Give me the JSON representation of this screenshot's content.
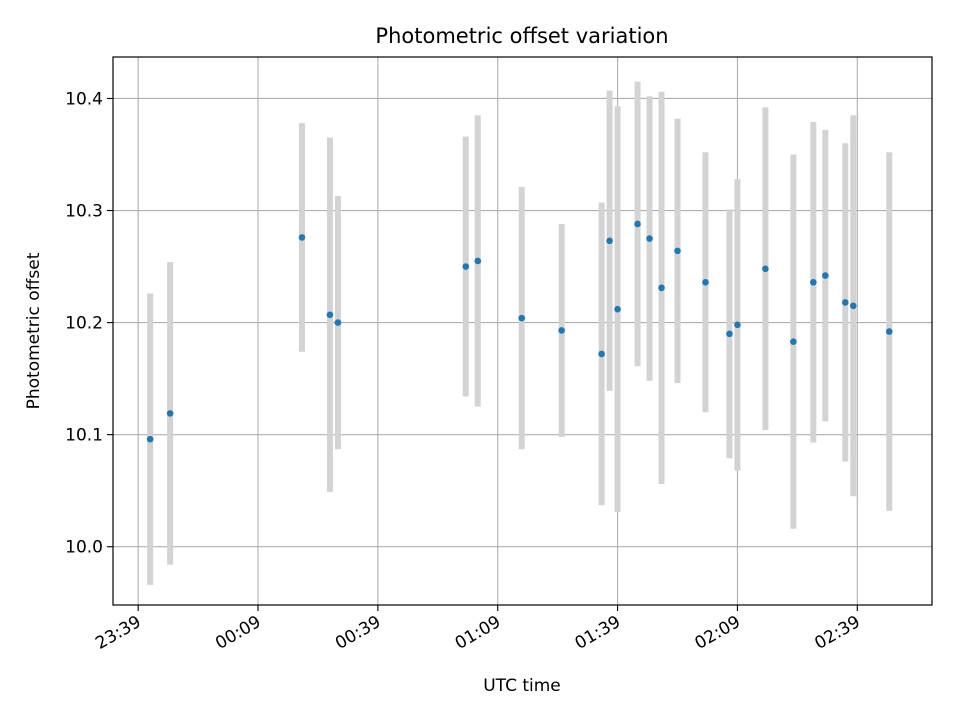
{
  "chart_data": {
    "type": "scatter",
    "title": "Photometric offset variation",
    "xlabel": "UTC time",
    "ylabel": "Photometric offset",
    "x_ticks": [
      "23:39",
      "00:09",
      "00:39",
      "01:09",
      "01:39",
      "02:09",
      "02:39"
    ],
    "y_ticks": [
      "10.0",
      "10.1",
      "10.2",
      "10.3",
      "10.4"
    ],
    "x_unit": "minutes after 23:39 UTC",
    "xlim": [
      -6.3,
      198.7
    ],
    "ylim": [
      9.948,
      10.437
    ],
    "grid": true,
    "points": [
      {
        "x": 3,
        "y": 10.096,
        "err": 0.13
      },
      {
        "x": 8,
        "y": 10.119,
        "err": 0.135
      },
      {
        "x": 41,
        "y": 10.276,
        "err": 0.102
      },
      {
        "x": 48,
        "y": 10.207,
        "err": 0.158
      },
      {
        "x": 50,
        "y": 10.2,
        "err": 0.113
      },
      {
        "x": 82,
        "y": 10.25,
        "err": 0.116
      },
      {
        "x": 85,
        "y": 10.255,
        "err": 0.13
      },
      {
        "x": 96,
        "y": 10.204,
        "err": 0.117
      },
      {
        "x": 106,
        "y": 10.193,
        "err": 0.095
      },
      {
        "x": 116,
        "y": 10.172,
        "err": 0.135
      },
      {
        "x": 118,
        "y": 10.273,
        "err": 0.134
      },
      {
        "x": 120,
        "y": 10.212,
        "err": 0.181
      },
      {
        "x": 125,
        "y": 10.288,
        "err": 0.127
      },
      {
        "x": 128,
        "y": 10.275,
        "err": 0.127
      },
      {
        "x": 131,
        "y": 10.231,
        "err": 0.175
      },
      {
        "x": 135,
        "y": 10.264,
        "err": 0.118
      },
      {
        "x": 142,
        "y": 10.236,
        "err": 0.116
      },
      {
        "x": 148,
        "y": 10.19,
        "err": 0.111
      },
      {
        "x": 150,
        "y": 10.198,
        "err": 0.13
      },
      {
        "x": 157,
        "y": 10.248,
        "err": 0.144
      },
      {
        "x": 164,
        "y": 10.183,
        "err": 0.167
      },
      {
        "x": 169,
        "y": 10.236,
        "err": 0.143
      },
      {
        "x": 172,
        "y": 10.242,
        "err": 0.13
      },
      {
        "x": 177,
        "y": 10.218,
        "err": 0.142
      },
      {
        "x": 179,
        "y": 10.215,
        "err": 0.17
      },
      {
        "x": 188,
        "y": 10.192,
        "err": 0.16
      }
    ],
    "colors": {
      "marker": "#1f77b4",
      "errorbar": "#d3d3d3",
      "grid": "#b0b0b0",
      "axes": "#000000"
    }
  }
}
